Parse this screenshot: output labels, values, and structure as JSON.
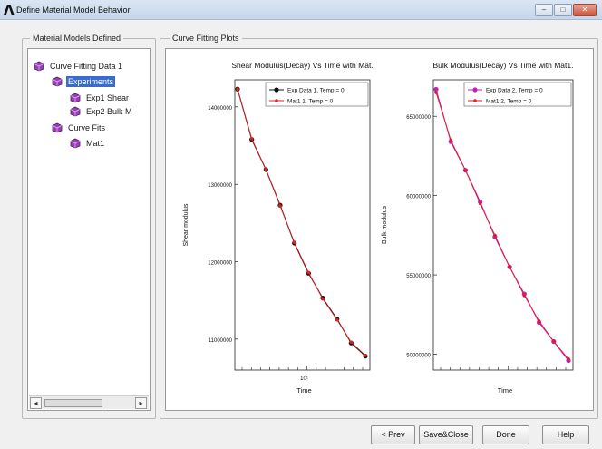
{
  "window": {
    "app_logo": "Λ",
    "title": "Define Material Model Behavior",
    "minimize": "–",
    "maximize": "□",
    "close": "✕"
  },
  "models_group": {
    "label": "Material Models Defined",
    "tree": [
      {
        "label": "Curve Fitting Data 1",
        "icon": "material-model-icon",
        "depth": 0,
        "selected": false
      },
      {
        "label": "Experiments",
        "icon": "material-model-icon",
        "depth": 1,
        "selected": true
      },
      {
        "label": "Exp1 Shear",
        "icon": "material-model-icon",
        "depth": 2,
        "selected": false
      },
      {
        "label": "Exp2 Bulk M",
        "icon": "material-model-icon",
        "depth": 2,
        "selected": false
      },
      {
        "label": "Curve Fits",
        "icon": "material-model-icon",
        "depth": 1,
        "selected": false
      },
      {
        "label": "Mat1",
        "icon": "material-model-icon",
        "depth": 2,
        "selected": false
      }
    ],
    "scroll_left": "◂",
    "scroll_right": "▸"
  },
  "plots_group": {
    "label": "Curve Fitting Plots"
  },
  "colors": {
    "exp1": "#111111",
    "fit1": "#e02020",
    "exp2": "#c020c0",
    "fit2": "#e02020",
    "selection": "#3a6ccf"
  },
  "chart_data": [
    {
      "type": "line",
      "title": "Shear Modulus(Decay) Vs Time with Mat.",
      "xlabel": "Time",
      "ylabel": "Shear modulus",
      "x_tick_label": "10¹",
      "y_ticks": [
        11000000,
        12000000,
        13000000,
        14000000
      ],
      "y_tick_labels": [
        "11000000",
        "12000000",
        "13000000",
        "14000000"
      ],
      "ylim": [
        10600000,
        14350000
      ],
      "x_scale": "log",
      "legend": "top-right",
      "series": [
        {
          "name": "Exp Data 1, Temp = 0",
          "color": "#111111",
          "points": [
            [
              0,
              14230000
            ],
            [
              1,
              13580000
            ],
            [
              2,
              13190000
            ],
            [
              3,
              12730000
            ],
            [
              4,
              12240000
            ],
            [
              5,
              11850000
            ],
            [
              6,
              11530000
            ],
            [
              7,
              11260000
            ],
            [
              8,
              10950000
            ],
            [
              9,
              10780000
            ]
          ]
        },
        {
          "name": "Mat1 1, Temp = 0",
          "color": "#e02020",
          "points": [
            [
              0,
              14230000
            ],
            [
              1,
              13590000
            ],
            [
              2,
              13190000
            ],
            [
              3,
              12720000
            ],
            [
              4,
              12250000
            ],
            [
              5,
              11860000
            ],
            [
              6,
              11520000
            ],
            [
              7,
              11250000
            ],
            [
              8,
              10960000
            ],
            [
              9,
              10790000
            ]
          ]
        }
      ]
    },
    {
      "type": "line",
      "title": "Bulk Modulus(Decay) Vs Time with Mat1.",
      "xlabel": "Time",
      "ylabel": "Bulk modulus",
      "x_tick_label": "",
      "y_ticks": [
        50000000,
        55000000,
        60000000,
        65000000
      ],
      "y_tick_labels": [
        "50000000",
        "55000000",
        "60000000",
        "65000000"
      ],
      "ylim": [
        49000000,
        67300000
      ],
      "x_scale": "log",
      "legend": "top-right",
      "series": [
        {
          "name": "Exp Data 2, Temp = 0",
          "color": "#c020c0",
          "points": [
            [
              0,
              66700000
            ],
            [
              1,
              63400000
            ],
            [
              2,
              61600000
            ],
            [
              3,
              59600000
            ],
            [
              4,
              57400000
            ],
            [
              5,
              55500000
            ],
            [
              6,
              53800000
            ],
            [
              7,
              52000000
            ],
            [
              8,
              50800000
            ],
            [
              9,
              49600000
            ]
          ]
        },
        {
          "name": "Mat1 2, Temp = 0",
          "color": "#e02020",
          "points": [
            [
              0,
              66500000
            ],
            [
              1,
              63500000
            ],
            [
              2,
              61600000
            ],
            [
              3,
              59500000
            ],
            [
              4,
              57500000
            ],
            [
              5,
              55500000
            ],
            [
              6,
              53700000
            ],
            [
              7,
              52100000
            ],
            [
              8,
              50800000
            ],
            [
              9,
              49700000
            ]
          ]
        }
      ]
    }
  ],
  "footer": {
    "prev": "< Prev",
    "save_close": "Save&Close",
    "done": "Done",
    "help": "Help"
  }
}
